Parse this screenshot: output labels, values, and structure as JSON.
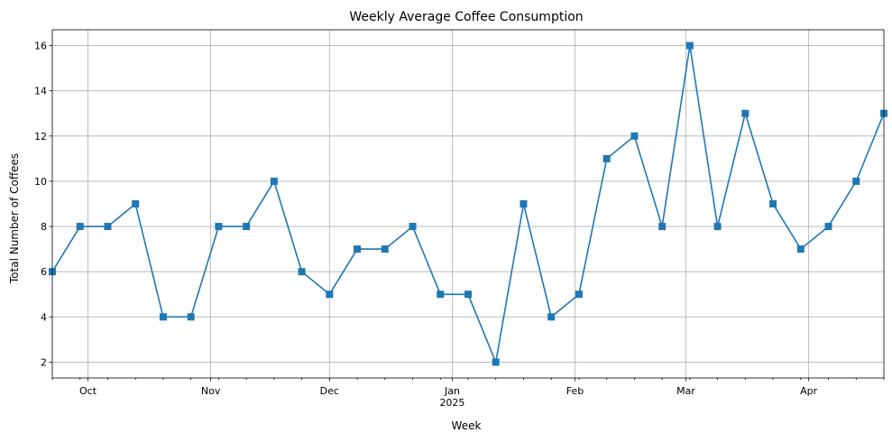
{
  "chart_data": {
    "type": "line",
    "title": "Weekly Average Coffee Consumption",
    "xlabel": "Week",
    "ylabel": "Total Number of Coffees",
    "x": [
      "2024-09-22",
      "2024-09-29",
      "2024-10-06",
      "2024-10-13",
      "2024-10-20",
      "2024-10-27",
      "2024-11-03",
      "2024-11-10",
      "2024-11-17",
      "2024-11-24",
      "2024-12-01",
      "2024-12-08",
      "2024-12-15",
      "2024-12-22",
      "2024-12-29",
      "2025-01-05",
      "2025-01-12",
      "2025-01-19",
      "2025-01-26",
      "2025-02-02",
      "2025-02-09",
      "2025-02-16",
      "2025-02-23",
      "2025-03-02",
      "2025-03-09",
      "2025-03-16",
      "2025-03-23",
      "2025-03-30",
      "2025-04-06",
      "2025-04-13",
      "2025-04-20"
    ],
    "series": [
      {
        "values": [
          6,
          8,
          8,
          9,
          4,
          4,
          8,
          8,
          10,
          6,
          5,
          7,
          7,
          8,
          5,
          5,
          2,
          9,
          4,
          5,
          11,
          12,
          8,
          16,
          8,
          13,
          9,
          7,
          8,
          10,
          13
        ]
      }
    ],
    "xlim": [
      "2024-09-22",
      "2025-04-20"
    ],
    "ylim": [
      1.3,
      16.7
    ],
    "yticks": [
      2,
      4,
      6,
      8,
      10,
      12,
      14,
      16
    ],
    "xticks": [
      {
        "date": "2024-10-01",
        "label": "Oct"
      },
      {
        "date": "2024-11-01",
        "label": "Nov"
      },
      {
        "date": "2024-12-01",
        "label": "Dec"
      },
      {
        "date": "2025-01-01",
        "label": "Jan",
        "sublabel": "2025"
      },
      {
        "date": "2025-02-01",
        "label": "Feb"
      },
      {
        "date": "2025-03-01",
        "label": "Mar"
      },
      {
        "date": "2025-04-01",
        "label": "Apr"
      }
    ],
    "grid": true,
    "line_color": "#1f77b4",
    "marker": "square"
  }
}
